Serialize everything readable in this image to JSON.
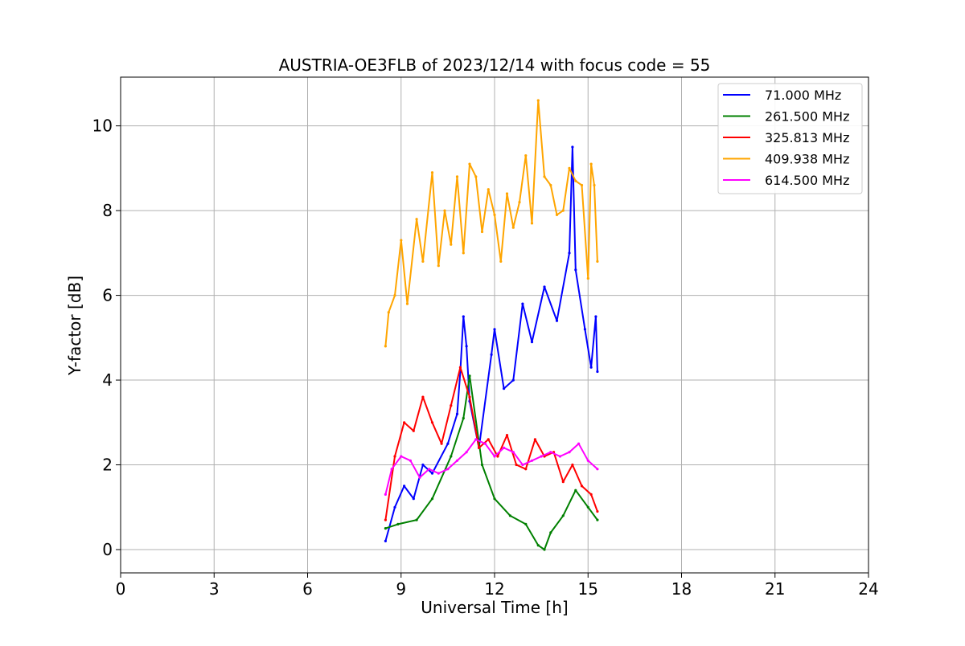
{
  "chart_data": {
    "type": "line",
    "title": "AUSTRIA-OE3FLB of 2023/12/14 with focus code = 55",
    "xlabel": "Universal Time [h]",
    "ylabel": "Y-factor [dB]",
    "xlim": [
      0,
      24
    ],
    "ylim": [
      -0.55,
      11.15
    ],
    "xticks": [
      0,
      3,
      6,
      9,
      12,
      15,
      18,
      21,
      24
    ],
    "xtick_labels": [
      "0",
      "3",
      "6",
      "9",
      "12",
      "15",
      "18",
      "21",
      "24"
    ],
    "yticks": [
      0,
      2,
      4,
      6,
      8,
      10
    ],
    "ytick_labels": [
      "0",
      "2",
      "4",
      "6",
      "8",
      "10"
    ],
    "grid": true,
    "legend_position": "top-right",
    "series": [
      {
        "name": "71.000 MHz",
        "legend_label": " 71.000 MHz",
        "color": "#0000ff",
        "points": [
          [
            8.5,
            0.2
          ],
          [
            8.8,
            1.0
          ],
          [
            9.1,
            1.5
          ],
          [
            9.4,
            1.2
          ],
          [
            9.7,
            2.0
          ],
          [
            10.0,
            1.8
          ],
          [
            10.5,
            2.5
          ],
          [
            10.8,
            3.2
          ],
          [
            10.9,
            4.2
          ],
          [
            11.0,
            5.5
          ],
          [
            11.1,
            4.8
          ],
          [
            11.2,
            3.5
          ],
          [
            11.5,
            2.4
          ],
          [
            11.9,
            4.6
          ],
          [
            12.0,
            5.2
          ],
          [
            12.3,
            3.8
          ],
          [
            12.6,
            4.0
          ],
          [
            12.9,
            5.8
          ],
          [
            13.2,
            4.9
          ],
          [
            13.6,
            6.2
          ],
          [
            14.0,
            5.4
          ],
          [
            14.4,
            7.0
          ],
          [
            14.5,
            9.5
          ],
          [
            14.6,
            6.6
          ],
          [
            14.9,
            5.2
          ],
          [
            15.1,
            4.3
          ],
          [
            15.25,
            5.5
          ],
          [
            15.3,
            4.2
          ]
        ]
      },
      {
        "name": "261.500 MHz",
        "legend_label": "261.500 MHz",
        "color": "#008000",
        "points": [
          [
            8.5,
            0.5
          ],
          [
            8.9,
            0.6
          ],
          [
            9.5,
            0.7
          ],
          [
            10.0,
            1.2
          ],
          [
            10.6,
            2.2
          ],
          [
            11.0,
            3.1
          ],
          [
            11.2,
            4.1
          ],
          [
            11.6,
            2.0
          ],
          [
            12.0,
            1.2
          ],
          [
            12.5,
            0.8
          ],
          [
            13.0,
            0.6
          ],
          [
            13.4,
            0.1
          ],
          [
            13.6,
            0.0
          ],
          [
            13.8,
            0.4
          ],
          [
            14.2,
            0.8
          ],
          [
            14.6,
            1.4
          ],
          [
            15.0,
            1.0
          ],
          [
            15.3,
            0.7
          ]
        ]
      },
      {
        "name": "325.813 MHz",
        "legend_label": "325.813 MHz",
        "color": "#ff0000",
        "points": [
          [
            8.5,
            0.7
          ],
          [
            8.8,
            2.2
          ],
          [
            9.1,
            3.0
          ],
          [
            9.4,
            2.8
          ],
          [
            9.7,
            3.6
          ],
          [
            10.0,
            3.0
          ],
          [
            10.3,
            2.5
          ],
          [
            10.6,
            3.4
          ],
          [
            10.9,
            4.3
          ],
          [
            11.2,
            3.6
          ],
          [
            11.5,
            2.4
          ],
          [
            11.8,
            2.6
          ],
          [
            12.1,
            2.2
          ],
          [
            12.4,
            2.7
          ],
          [
            12.7,
            2.0
          ],
          [
            13.0,
            1.9
          ],
          [
            13.3,
            2.6
          ],
          [
            13.6,
            2.2
          ],
          [
            13.9,
            2.3
          ],
          [
            14.2,
            1.6
          ],
          [
            14.5,
            2.0
          ],
          [
            14.8,
            1.5
          ],
          [
            15.1,
            1.3
          ],
          [
            15.3,
            0.9
          ]
        ]
      },
      {
        "name": "409.938 MHz",
        "legend_label": "409.938 MHz",
        "color": "#ffa500",
        "points": [
          [
            8.5,
            4.8
          ],
          [
            8.6,
            5.6
          ],
          [
            8.8,
            6.0
          ],
          [
            9.0,
            7.3
          ],
          [
            9.2,
            5.8
          ],
          [
            9.5,
            7.8
          ],
          [
            9.7,
            6.8
          ],
          [
            10.0,
            8.9
          ],
          [
            10.2,
            6.7
          ],
          [
            10.4,
            8.0
          ],
          [
            10.6,
            7.2
          ],
          [
            10.8,
            8.8
          ],
          [
            11.0,
            7.0
          ],
          [
            11.2,
            9.1
          ],
          [
            11.4,
            8.8
          ],
          [
            11.6,
            7.5
          ],
          [
            11.8,
            8.5
          ],
          [
            12.0,
            7.9
          ],
          [
            12.2,
            6.8
          ],
          [
            12.4,
            8.4
          ],
          [
            12.6,
            7.6
          ],
          [
            12.8,
            8.2
          ],
          [
            13.0,
            9.3
          ],
          [
            13.2,
            7.7
          ],
          [
            13.4,
            10.6
          ],
          [
            13.6,
            8.8
          ],
          [
            13.8,
            8.6
          ],
          [
            14.0,
            7.9
          ],
          [
            14.2,
            8.0
          ],
          [
            14.4,
            9.0
          ],
          [
            14.6,
            8.7
          ],
          [
            14.8,
            8.6
          ],
          [
            15.0,
            6.4
          ],
          [
            15.1,
            9.1
          ],
          [
            15.2,
            8.6
          ],
          [
            15.3,
            6.8
          ]
        ]
      },
      {
        "name": "614.500 MHz",
        "legend_label": "614.500 MHz",
        "color": "#ff00ff",
        "points": [
          [
            8.5,
            1.3
          ],
          [
            8.7,
            1.9
          ],
          [
            9.0,
            2.2
          ],
          [
            9.3,
            2.1
          ],
          [
            9.6,
            1.7
          ],
          [
            9.9,
            1.9
          ],
          [
            10.2,
            1.8
          ],
          [
            10.5,
            1.9
          ],
          [
            10.8,
            2.1
          ],
          [
            11.1,
            2.3
          ],
          [
            11.4,
            2.6
          ],
          [
            11.7,
            2.5
          ],
          [
            12.0,
            2.2
          ],
          [
            12.3,
            2.4
          ],
          [
            12.6,
            2.3
          ],
          [
            12.9,
            2.0
          ],
          [
            13.2,
            2.1
          ],
          [
            13.5,
            2.2
          ],
          [
            13.8,
            2.3
          ],
          [
            14.1,
            2.2
          ],
          [
            14.4,
            2.3
          ],
          [
            14.7,
            2.5
          ],
          [
            15.0,
            2.1
          ],
          [
            15.3,
            1.9
          ]
        ]
      }
    ]
  }
}
